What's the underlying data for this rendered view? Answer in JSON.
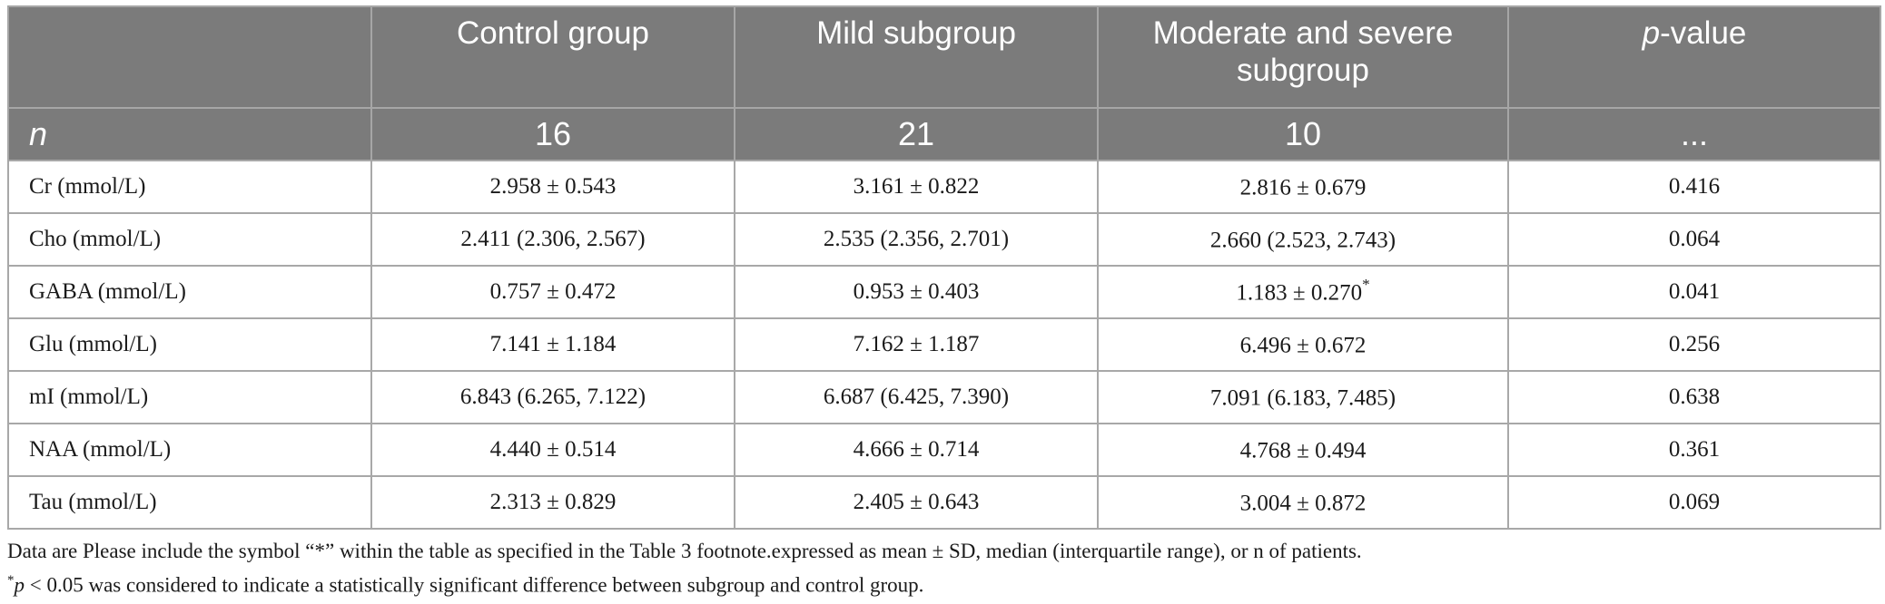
{
  "header": {
    "row_label_header": "",
    "columns": [
      "Control group",
      "Mild subgroup",
      "Moderate and severe subgroup"
    ],
    "pvalue_prefix": "p",
    "pvalue_suffix": "-value"
  },
  "n_row": {
    "label": "n",
    "values": [
      "16",
      "21",
      "10",
      "..."
    ]
  },
  "rows": [
    {
      "label": "Cr (mmol/L)",
      "control": "2.958 ± 0.543",
      "mild": "3.161 ± 0.822",
      "severe": "2.816 ± 0.679",
      "severe_mark": "",
      "p": "0.416"
    },
    {
      "label": "Cho (mmol/L)",
      "control": "2.411 (2.306, 2.567)",
      "mild": "2.535 (2.356, 2.701)",
      "severe": "2.660 (2.523, 2.743)",
      "severe_mark": "",
      "p": "0.064"
    },
    {
      "label": "GABA (mmol/L)",
      "control": "0.757 ± 0.472",
      "mild": "0.953 ± 0.403",
      "severe": "1.183 ± 0.270",
      "severe_mark": "*",
      "p": "0.041"
    },
    {
      "label": "Glu (mmol/L)",
      "control": "7.141 ± 1.184",
      "mild": "7.162 ± 1.187",
      "severe": "6.496 ± 0.672",
      "severe_mark": "",
      "p": "0.256"
    },
    {
      "label": "mI (mmol/L)",
      "control": "6.843 (6.265, 7.122)",
      "mild": "6.687 (6.425, 7.390)",
      "severe": "7.091 (6.183, 7.485)",
      "severe_mark": "",
      "p": "0.638"
    },
    {
      "label": "NAA (mmol/L)",
      "control": "4.440 ± 0.514",
      "mild": "4.666 ± 0.714",
      "severe": "4.768 ± 0.494",
      "severe_mark": "",
      "p": "0.361"
    },
    {
      "label": "Tau (mmol/L)",
      "control": "2.313 ± 0.829",
      "mild": "2.405 ± 0.643",
      "severe": "3.004 ± 0.872",
      "severe_mark": "",
      "p": "0.069"
    }
  ],
  "footnotes": {
    "note1": "Data are Please include the symbol “*” within the table as specified in the Table 3 footnote.expressed as mean ± SD, median (interquartile range), or n of patients.",
    "note2_star": "*",
    "note2_p": "p",
    "note2_rest": " < 0.05 was considered to indicate a statistically significant difference between subgroup and control group."
  },
  "colors": {
    "header_bg": "#7b7b7b",
    "header_text": "#ffffff",
    "grid": "#a8a8a8"
  }
}
